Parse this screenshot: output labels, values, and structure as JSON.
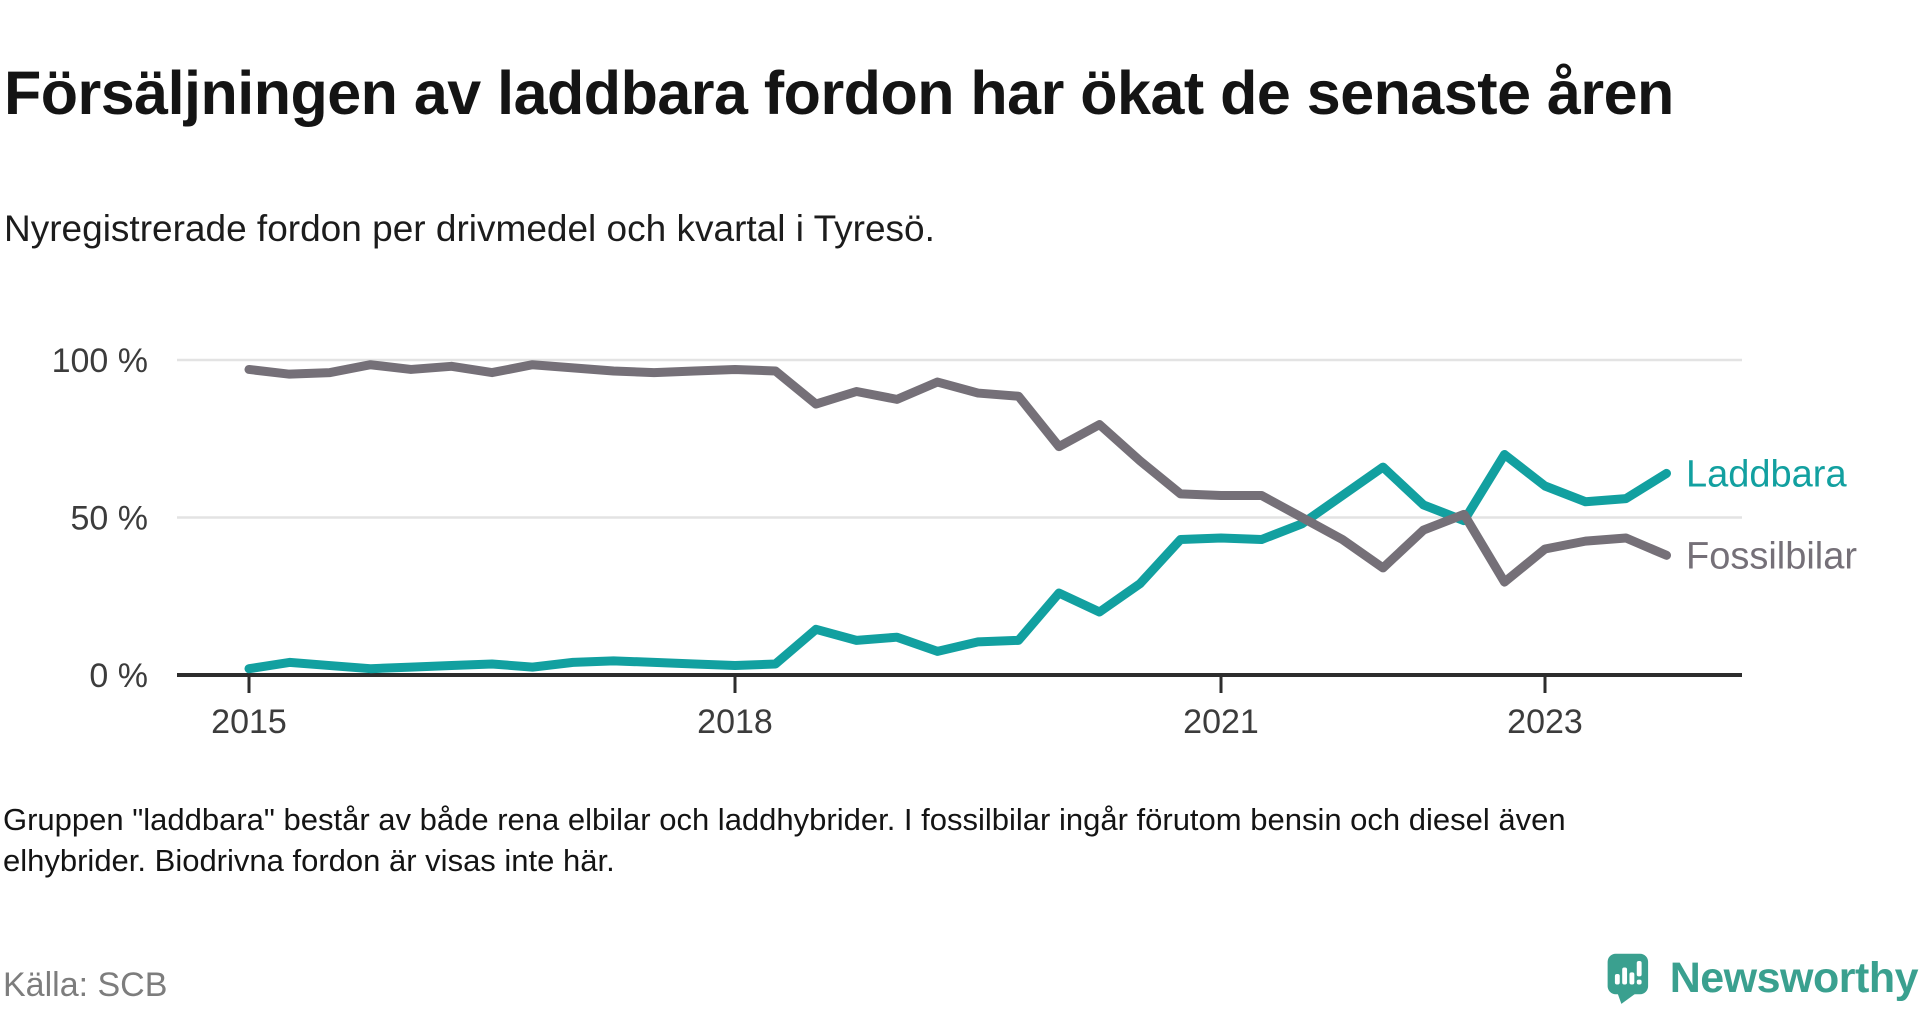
{
  "header": {
    "title": "Försäljningen av laddbara fordon har ökat de senaste åren",
    "subtitle": "Nyregistrerade fordon per drivmedel och kvartal i Tyresö."
  },
  "footer": {
    "note_line1": "Gruppen \"laddbara\" består av både rena elbilar och laddhybrider. I fossilbilar ingår förutom bensin och diesel även",
    "note_line2": "elhybrider. Biodrivna fordon är visas inte här.",
    "source": "Källa: SCB"
  },
  "branding": {
    "logo_text": "Newsworthy",
    "logo_icon": "speech-bubble-bar-chart-icon",
    "logo_color": "#3aa08f"
  },
  "colors": {
    "laddbara": "#12a0a0",
    "fossilbilar": "#757078",
    "gridline": "#e3e3e3",
    "axis": "#2d2d2d",
    "tick_label": "#3c3c3c"
  },
  "chart_data": {
    "type": "line",
    "unit": "%",
    "ylim": [
      0,
      100
    ],
    "grid": "horizontal",
    "legend_position": "right-end-of-lines",
    "x": [
      "2015 Q1",
      "2015 Q2",
      "2015 Q3",
      "2015 Q4",
      "2016 Q1",
      "2016 Q2",
      "2016 Q3",
      "2016 Q4",
      "2017 Q1",
      "2017 Q2",
      "2017 Q3",
      "2017 Q4",
      "2018 Q1",
      "2018 Q2",
      "2018 Q3",
      "2018 Q4",
      "2019 Q1",
      "2019 Q2",
      "2019 Q3",
      "2019 Q4",
      "2020 Q1",
      "2020 Q2",
      "2020 Q3",
      "2020 Q4",
      "2021 Q1",
      "2021 Q2",
      "2021 Q3",
      "2021 Q4",
      "2022 Q1",
      "2022 Q2",
      "2022 Q3",
      "2022 Q4",
      "2023 Q1",
      "2023 Q2",
      "2023 Q3",
      "2023 Q4"
    ],
    "series": [
      {
        "name": "Laddbara",
        "color": "#12a0a0",
        "values": [
          2,
          4,
          3,
          2,
          2.5,
          3,
          3.5,
          2.5,
          4,
          4.5,
          4,
          3.5,
          3,
          3.5,
          14.5,
          11,
          12,
          7.5,
          10.5,
          11,
          26,
          20,
          29,
          43,
          43.5,
          43,
          48,
          57,
          66,
          54,
          49,
          70,
          60,
          55,
          56,
          64
        ]
      },
      {
        "name": "Fossilbilar",
        "color": "#757078",
        "values": [
          97,
          95.5,
          96,
          98.5,
          97,
          98,
          96,
          98.5,
          97.5,
          96.5,
          96,
          96.5,
          97,
          96.5,
          86,
          90,
          87.5,
          93,
          89.5,
          88.5,
          72.5,
          79.5,
          68,
          57.5,
          57,
          57,
          50,
          43,
          34,
          46,
          51,
          29.5,
          40,
          42.5,
          43.5,
          38
        ]
      }
    ],
    "y_ticks": [
      "100 %",
      "50 %",
      "0 %"
    ],
    "y_tick_values": [
      100,
      50,
      0
    ],
    "x_ticks": [
      {
        "label": "2015",
        "quarter_index": 0
      },
      {
        "label": "2018",
        "quarter_index": 12
      },
      {
        "label": "2021",
        "quarter_index": 24
      },
      {
        "label": "2023",
        "quarter_index": 32
      }
    ]
  }
}
